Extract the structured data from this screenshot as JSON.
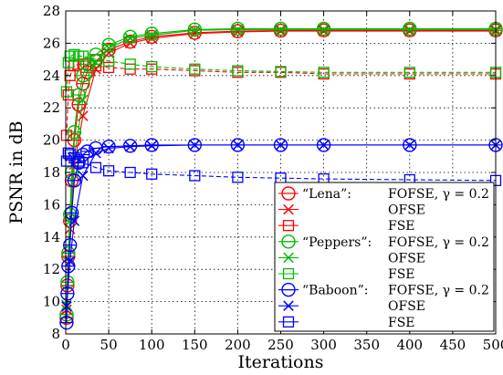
{
  "chart_data": {
    "type": "line",
    "xlabel": "Iterations",
    "ylabel": "PSNR in dB",
    "xlim": [
      0,
      500
    ],
    "ylim": [
      8,
      28
    ],
    "xticks": [
      0,
      50,
      100,
      150,
      200,
      250,
      300,
      350,
      400,
      450,
      500
    ],
    "yticks": [
      8,
      10,
      12,
      14,
      16,
      18,
      20,
      22,
      24,
      26,
      28
    ],
    "grid": true,
    "legend_position": "bottom-right",
    "legend": [
      {
        "image": "“Lena”:",
        "method": "FOFSE, γ = 0.2",
        "color": "#ff0000",
        "marker": "circle-plus"
      },
      {
        "image": "",
        "method": "OFSE",
        "color": "#ff0000",
        "marker": "x"
      },
      {
        "image": "",
        "method": "FSE",
        "color": "#ff0000",
        "marker": "square"
      },
      {
        "image": "“Peppers”:",
        "method": "FOFSE, γ = 0.2",
        "color": "#00bb00",
        "marker": "circle-plus"
      },
      {
        "image": "",
        "method": "OFSE",
        "color": "#00bb00",
        "marker": "x"
      },
      {
        "image": "",
        "method": "FSE",
        "color": "#00bb00",
        "marker": "square"
      },
      {
        "image": "“Baboon”:",
        "method": "FOFSE, γ = 0.2",
        "color": "#0000ff",
        "marker": "circle-plus"
      },
      {
        "image": "",
        "method": "OFSE",
        "color": "#0000ff",
        "marker": "x"
      },
      {
        "image": "",
        "method": "FSE",
        "color": "#0000ff",
        "marker": "square"
      }
    ],
    "series": [
      {
        "color": "#ff0000",
        "marker": "circle-plus",
        "dash": "solid",
        "x": [
          1,
          2,
          3,
          5,
          7,
          10,
          15,
          20,
          25,
          35,
          50,
          75,
          100,
          150,
          200,
          250,
          300,
          400,
          500
        ],
        "y": [
          9.0,
          11.0,
          12.8,
          15.0,
          17.5,
          20.0,
          22.2,
          23.5,
          24.2,
          24.9,
          25.6,
          26.1,
          26.4,
          26.65,
          26.75,
          26.78,
          26.8,
          26.8,
          26.8
        ]
      },
      {
        "color": "#ff0000",
        "marker": "x",
        "dash": "solid",
        "x": [
          1,
          5,
          10,
          20,
          35,
          50,
          75,
          100,
          150,
          200,
          250,
          300,
          400,
          500
        ],
        "y": [
          9.5,
          14.5,
          18.5,
          21.5,
          24.4,
          25.4,
          26.0,
          26.3,
          26.6,
          26.7,
          26.75,
          26.75,
          26.75,
          26.75
        ]
      },
      {
        "color": "#ff0000",
        "marker": "square",
        "dash": "dashed",
        "x": [
          1,
          3,
          5,
          10,
          15,
          20,
          35,
          50,
          75,
          100,
          150,
          200,
          250,
          300,
          400,
          500
        ],
        "y": [
          20.3,
          22.8,
          24.0,
          24.6,
          24.7,
          24.7,
          24.6,
          24.5,
          24.4,
          24.4,
          24.3,
          24.2,
          24.2,
          24.1,
          24.1,
          24.1
        ]
      },
      {
        "color": "#00bb00",
        "marker": "circle-plus",
        "dash": "solid",
        "x": [
          1,
          2,
          3,
          5,
          7,
          10,
          15,
          20,
          25,
          35,
          50,
          75,
          100,
          150,
          200,
          250,
          300,
          400,
          500
        ],
        "y": [
          9.2,
          11.2,
          13.0,
          15.4,
          18.0,
          20.5,
          22.8,
          24.0,
          24.7,
          25.3,
          25.9,
          26.4,
          26.6,
          26.85,
          26.9,
          26.9,
          26.9,
          26.9,
          26.9
        ]
      },
      {
        "color": "#00bb00",
        "marker": "x",
        "dash": "solid",
        "x": [
          1,
          5,
          10,
          20,
          35,
          50,
          75,
          100,
          150,
          200,
          250,
          300,
          400,
          500
        ],
        "y": [
          9.8,
          15.0,
          19.0,
          22.5,
          24.8,
          25.7,
          26.3,
          26.5,
          26.8,
          26.85,
          26.85,
          26.85,
          26.85,
          26.85
        ]
      },
      {
        "color": "#00bb00",
        "marker": "square",
        "dash": "dashed",
        "x": [
          1,
          3,
          5,
          10,
          15,
          20,
          35,
          50,
          75,
          100,
          150,
          200,
          250,
          300,
          400,
          500
        ],
        "y": [
          23.0,
          24.8,
          25.2,
          25.3,
          25.2,
          25.2,
          25.0,
          24.9,
          24.7,
          24.55,
          24.4,
          24.3,
          24.25,
          24.2,
          24.2,
          24.2
        ]
      },
      {
        "color": "#0000ff",
        "marker": "circle-plus",
        "dash": "solid",
        "x": [
          1,
          2,
          3,
          5,
          7,
          10,
          15,
          20,
          25,
          35,
          50,
          75,
          100,
          150,
          200,
          250,
          300,
          400,
          500
        ],
        "y": [
          8.7,
          10.5,
          12.2,
          13.5,
          15.5,
          17.5,
          18.6,
          19.1,
          19.3,
          19.5,
          19.6,
          19.65,
          19.7,
          19.7,
          19.7,
          19.7,
          19.7,
          19.7,
          19.7
        ]
      },
      {
        "color": "#0000ff",
        "marker": "x",
        "dash": "solid",
        "x": [
          1,
          5,
          10,
          20,
          35,
          50,
          75,
          100,
          150,
          200,
          250,
          300,
          400,
          500
        ],
        "y": [
          9.7,
          12.5,
          15.0,
          17.8,
          19.2,
          19.5,
          19.6,
          19.65,
          19.7,
          19.7,
          19.7,
          19.7,
          19.7,
          19.7
        ]
      },
      {
        "color": "#0000ff",
        "marker": "square",
        "dash": "dashed",
        "x": [
          1,
          3,
          5,
          10,
          15,
          20,
          35,
          50,
          75,
          100,
          150,
          200,
          250,
          300,
          400,
          500
        ],
        "y": [
          18.7,
          19.2,
          19.1,
          18.9,
          18.7,
          18.6,
          18.3,
          18.1,
          18.0,
          17.9,
          17.8,
          17.7,
          17.65,
          17.6,
          17.55,
          17.5
        ]
      }
    ]
  }
}
